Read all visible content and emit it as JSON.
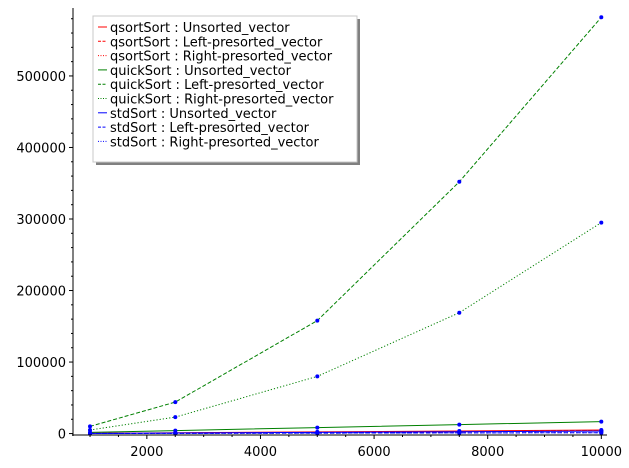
{
  "chart_data": {
    "type": "line",
    "x": [
      1000,
      2500,
      5000,
      7500,
      10000
    ],
    "xticks": [
      2000,
      4000,
      6000,
      8000,
      10000
    ],
    "yticks": [
      0,
      100000,
      200000,
      300000,
      400000,
      500000
    ],
    "xlim": [
      700,
      10100
    ],
    "ylim": [
      -2000,
      595000
    ],
    "xlabel": "",
    "ylabel": "",
    "title": "",
    "grid": false,
    "legend_position": "top-left",
    "marker_color": "#0000ff",
    "series": [
      {
        "name": "qsortSort : Unsorted_vector",
        "color": "#ff0000",
        "style": "solid",
        "values": [
          400,
          1100,
          2300,
          3600,
          5000
        ]
      },
      {
        "name": "qsortSort : Left-presorted_vector",
        "color": "#ff0000",
        "style": "dashed",
        "values": [
          300,
          800,
          1700,
          2700,
          3700
        ]
      },
      {
        "name": "qsortSort : Right-presorted_vector",
        "color": "#ff0000",
        "style": "dotted",
        "values": [
          300,
          800,
          1700,
          2700,
          3700
        ]
      },
      {
        "name": "quickSort : Unsorted_vector",
        "color": "#008000",
        "style": "solid",
        "values": [
          1600,
          4200,
          8400,
          12500,
          16800
        ]
      },
      {
        "name": "quickSort : Left-presorted_vector",
        "color": "#008000",
        "style": "dashed",
        "values": [
          10000,
          44000,
          158000,
          352000,
          582000
        ]
      },
      {
        "name": "quickSort : Right-presorted_vector",
        "color": "#008000",
        "style": "dotted",
        "values": [
          5000,
          23000,
          80000,
          169000,
          295000
        ]
      },
      {
        "name": "stdSort : Unsorted_vector",
        "color": "#0000ff",
        "style": "solid",
        "values": [
          300,
          800,
          1700,
          2600,
          3500
        ]
      },
      {
        "name": "stdSort : Left-presorted_vector",
        "color": "#0000ff",
        "style": "dashed",
        "values": [
          100,
          300,
          600,
          900,
          1200
        ]
      },
      {
        "name": "stdSort : Right-presorted_vector",
        "color": "#0000ff",
        "style": "dotted",
        "values": [
          100,
          300,
          600,
          900,
          1200
        ]
      }
    ]
  }
}
